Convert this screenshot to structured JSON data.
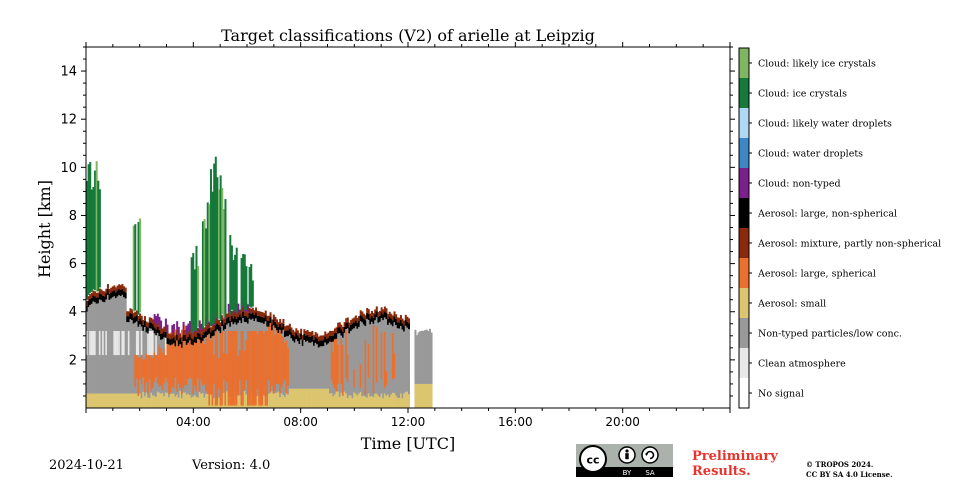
{
  "chart_data": {
    "type": "heatmap",
    "title": "Target classifications (V2) of arielle at Leipzig",
    "xlabel": "Time [UTC]",
    "ylabel": "Height [km]",
    "xlim": [
      0,
      24
    ],
    "ylim": [
      0,
      15
    ],
    "x_ticks": [
      "04:00",
      "08:00",
      "12:00",
      "16:00",
      "20:00"
    ],
    "y_ticks": [
      "2",
      "4",
      "6",
      "8",
      "10",
      "12",
      "14"
    ],
    "classes": [
      {
        "label": "No signal",
        "color": "#ffffff"
      },
      {
        "label": "Clean atmosphere",
        "color": "#e8e8e8"
      },
      {
        "label": "Non-typed particles/low conc.",
        "color": "#999999"
      },
      {
        "label": "Aerosol: small",
        "color": "#dcc56f"
      },
      {
        "label": "Aerosol: large, spherical",
        "color": "#eb6f2d"
      },
      {
        "label": "Aerosol: mixture, partly non-spherical",
        "color": "#8a2a0d"
      },
      {
        "label": "Aerosol: large, non-spherical",
        "color": "#000000"
      },
      {
        "label": "Cloud: non-typed",
        "color": "#7b1f8c"
      },
      {
        "label": "Cloud: water droplets",
        "color": "#3e87c6"
      },
      {
        "label": "Cloud: likely water droplets",
        "color": "#afd8f4"
      },
      {
        "label": "Cloud: ice crystals",
        "color": "#15793a"
      },
      {
        "label": "Cloud: likely ice crystals",
        "color": "#80b562"
      }
    ]
  },
  "footer": {
    "date": "2024-10-21",
    "version": "Version: 4.0",
    "preliminary_line1": "Preliminary",
    "preliminary_line2": "Results.",
    "copyright_line1": "© TROPOS 2024.",
    "copyright_line2": "CC BY SA 4.0 License.",
    "license_badge": {
      "cc": "cc",
      "by": "BY",
      "sa": "SA"
    }
  },
  "colors": {
    "preliminary": "#e8332d"
  }
}
